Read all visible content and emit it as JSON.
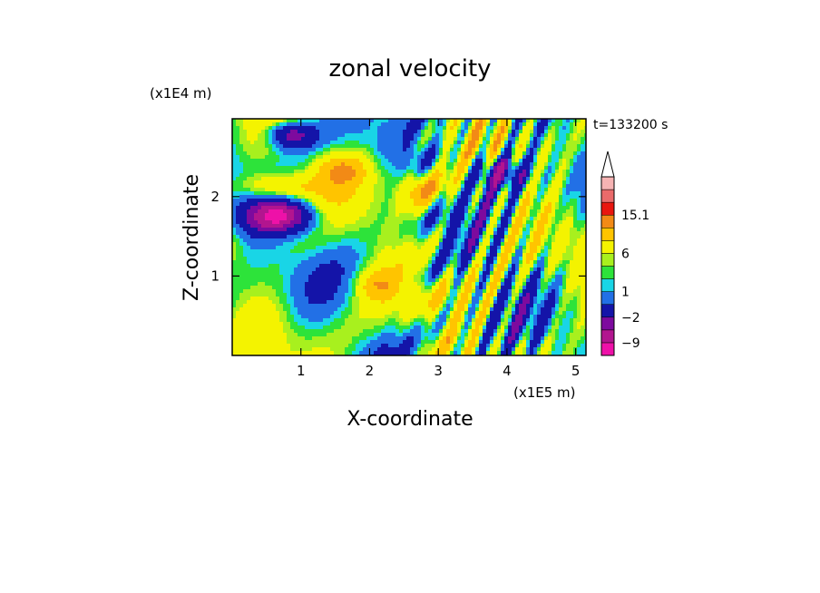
{
  "chart_data": {
    "type": "heatmap",
    "title": "zonal velocity",
    "xlabel": "X-coordinate",
    "ylabel": "Z-coordinate",
    "x_unit": "(x1E5 m)",
    "y_unit": "(x1E4 m)",
    "time_label": "t=133200 s",
    "xlim": [
      0,
      5.15
    ],
    "ylim": [
      0,
      2.98
    ],
    "x_ticks": [
      1,
      2,
      3,
      4,
      5
    ],
    "y_ticks": [
      1,
      2
    ],
    "colorbar": {
      "levels": [
        -12,
        -9,
        -6,
        -2,
        0,
        1,
        2,
        3,
        6,
        9,
        12,
        15.1
      ],
      "colors": [
        "#ee11a8",
        "#b2158f",
        "#7d0a9e",
        "#1414a8",
        "#2270e6",
        "#19d5e6",
        "#2de33a",
        "#a8f01e",
        "#f4f300",
        "#ffc400",
        "#f28a16",
        "#e9160f",
        "#ea6a6a",
        "#f6b3b3"
      ],
      "labels": [
        "15.1",
        "6",
        "1",
        "-2",
        "-9"
      ],
      "extend_max": true
    },
    "grid": false,
    "legend": "colorbar-right"
  }
}
